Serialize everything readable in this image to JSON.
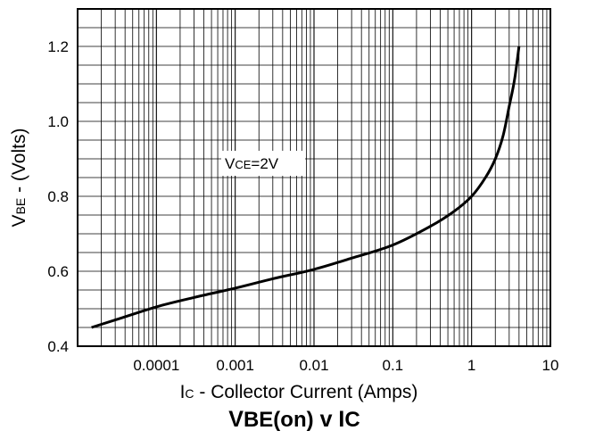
{
  "chart_data": {
    "type": "line",
    "title": {
      "main": "V",
      "sub": "BE(on)",
      "mid": " v I",
      "sub2": "C"
    },
    "xlabel": {
      "main": "I",
      "sub": "C",
      "rest": " - Collector Current (Amps)"
    },
    "ylabel": {
      "main": "V",
      "sub": "BE",
      "rest": " - (Volts)"
    },
    "x_scale": "log",
    "xlim": [
      1e-05,
      10
    ],
    "ylim": [
      0.4,
      1.3
    ],
    "grid": true,
    "x_tick_labels": [
      "0.0001",
      "0.001",
      "0.01",
      "0.1",
      "1",
      "10"
    ],
    "y_tick_labels": [
      "0.4",
      "0.6",
      "0.8",
      "1.0",
      "1.2"
    ],
    "annotation": {
      "main": "V",
      "sub": "CE",
      "rest": "=2V"
    },
    "series": [
      {
        "color": "#000000",
        "x": [
          1.5e-05,
          3e-05,
          0.0001,
          0.0003,
          0.001,
          0.003,
          0.01,
          0.03,
          0.1,
          0.3,
          0.6,
          1,
          1.5,
          2,
          2.5,
          3,
          3.5,
          4
        ],
        "y": [
          0.45,
          0.47,
          0.505,
          0.53,
          0.555,
          0.58,
          0.605,
          0.635,
          0.67,
          0.72,
          0.76,
          0.8,
          0.85,
          0.9,
          0.96,
          1.04,
          1.11,
          1.2
        ]
      }
    ]
  }
}
